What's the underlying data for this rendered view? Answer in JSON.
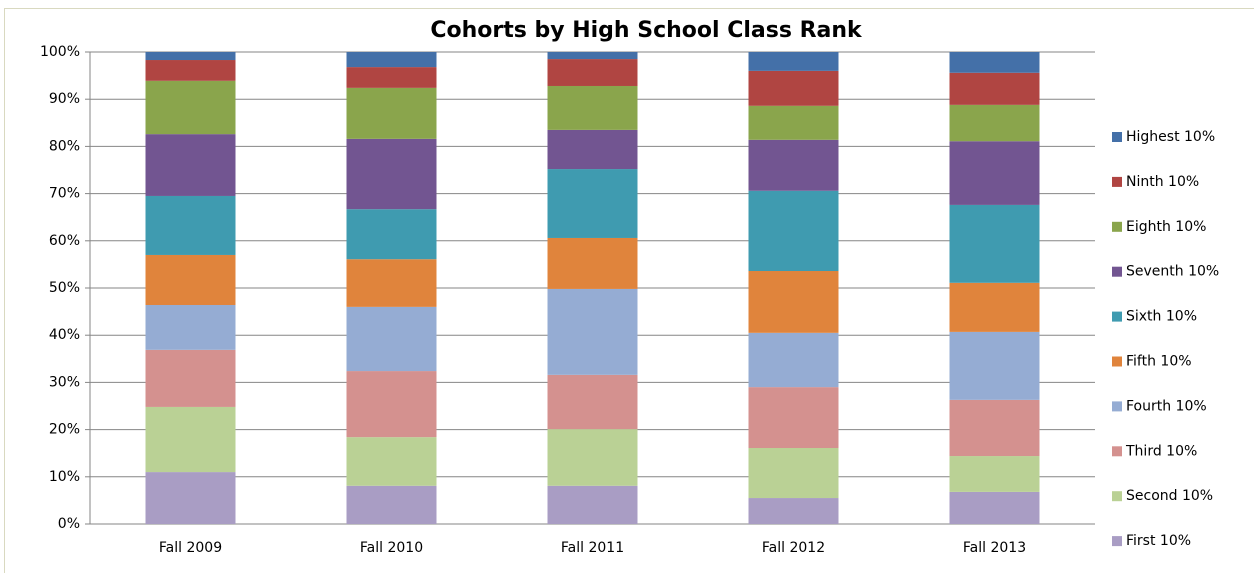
{
  "chart_data": {
    "type": "stacked_bar_100",
    "title": "Cohorts by High School Class Rank",
    "categories": [
      "Fall 2009",
      "Fall 2010",
      "Fall 2011",
      "Fall 2012",
      "Fall 2013"
    ],
    "series": [
      {
        "name": "First 10%",
        "color": "#a99dc4",
        "values": [
          11.0,
          8.1,
          8.1,
          5.5,
          6.8
        ]
      },
      {
        "name": "Second 10%",
        "color": "#bad195",
        "values": [
          13.8,
          10.3,
          12.0,
          10.6,
          7.6
        ]
      },
      {
        "name": "Third 10%",
        "color": "#d4918f",
        "values": [
          12.1,
          14.0,
          11.5,
          12.9,
          11.9
        ]
      },
      {
        "name": "Fourth 10%",
        "color": "#95acd3",
        "values": [
          9.5,
          13.6,
          18.2,
          11.5,
          14.4
        ]
      },
      {
        "name": "Fifth 10%",
        "color": "#e0843c",
        "values": [
          10.6,
          10.1,
          10.8,
          13.1,
          10.4
        ]
      },
      {
        "name": "Sixth 10%",
        "color": "#3f9bb0",
        "values": [
          12.5,
          10.6,
          14.6,
          17.0,
          16.5
        ]
      },
      {
        "name": "Seventh 10%",
        "color": "#725591",
        "values": [
          13.1,
          14.9,
          8.3,
          10.8,
          13.5
        ]
      },
      {
        "name": "Eighth 10%",
        "color": "#8aa54c",
        "values": [
          11.3,
          10.8,
          9.3,
          7.2,
          7.7
        ]
      },
      {
        "name": "Ninth 10%",
        "color": "#b04542",
        "values": [
          4.4,
          4.4,
          5.7,
          7.4,
          6.8
        ]
      },
      {
        "name": "Highest 10%",
        "color": "#4470a8",
        "values": [
          1.7,
          3.2,
          1.5,
          4.0,
          4.4
        ]
      }
    ],
    "ylim": [
      0,
      100
    ],
    "yticks": [
      {
        "value": 0,
        "label": "0%"
      },
      {
        "value": 10,
        "label": "10%"
      },
      {
        "value": 20,
        "label": "20%"
      },
      {
        "value": 30,
        "label": "30%"
      },
      {
        "value": 40,
        "label": "40%"
      },
      {
        "value": 50,
        "label": "50%"
      },
      {
        "value": 60,
        "label": "60%"
      },
      {
        "value": 70,
        "label": "70%"
      },
      {
        "value": 80,
        "label": "80%"
      },
      {
        "value": 90,
        "label": "90%"
      },
      {
        "value": 100,
        "label": "100%"
      }
    ],
    "grid": true,
    "legend": "right"
  }
}
